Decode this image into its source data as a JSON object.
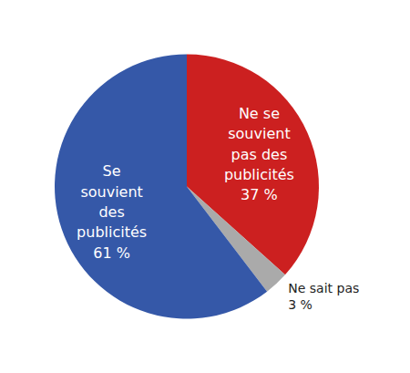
{
  "chart_data": {
    "type": "pie",
    "categories": [
      "Ne se\nsouvient\npas des\npublicités",
      "Ne sait pas",
      "Se\nsouvient\ndes\npublicités"
    ],
    "values": [
      37,
      3,
      61
    ],
    "value_labels": [
      "37 %",
      "3 %",
      "61 %"
    ],
    "colors": [
      "#cc2020",
      "#aaaaaa",
      "#3558a8"
    ],
    "data_labels": true
  }
}
